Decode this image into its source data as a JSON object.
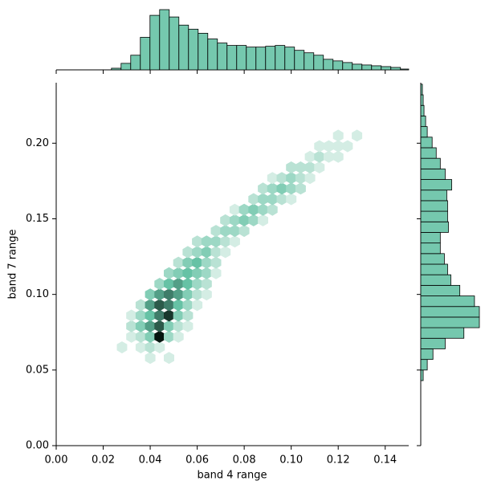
{
  "chart_data": [
    {
      "type": "hexbin",
      "xlabel": "band 4 range",
      "ylabel": "band 7 range",
      "xlim": [
        0,
        0.15
      ],
      "ylim": [
        0,
        0.24
      ],
      "xticks": [
        {
          "value": 0,
          "label": "0.00"
        },
        {
          "value": 0.02,
          "label": "0.02"
        },
        {
          "value": 0.04,
          "label": "0.04"
        },
        {
          "value": 0.06,
          "label": "0.06"
        },
        {
          "value": 0.08,
          "label": "0.08"
        },
        {
          "value": 0.1,
          "label": "0.10"
        },
        {
          "value": 0.12,
          "label": "0.12"
        },
        {
          "value": 0.14,
          "label": "0.14"
        }
      ],
      "yticks": [
        {
          "value": 0,
          "label": "0.00"
        },
        {
          "value": 0.05,
          "label": "0.05"
        },
        {
          "value": 0.1,
          "label": "0.10"
        },
        {
          "value": 0.15,
          "label": "0.15"
        },
        {
          "value": 0.2,
          "label": "0.20"
        }
      ],
      "color": "#66c2a5",
      "rows": [
        {
          "y": 0.058,
          "x": [
            0.04,
            0.048
          ],
          "values": [
            1,
            1
          ]
        },
        {
          "y": 0.065,
          "x": [
            0.028,
            0.036,
            0.04,
            0.044
          ],
          "values": [
            1,
            1,
            2,
            1
          ]
        },
        {
          "y": 0.072,
          "x": [
            0.032,
            0.036,
            0.04,
            0.044,
            0.048,
            0.052
          ],
          "values": [
            1,
            2,
            4,
            10,
            3,
            1
          ]
        },
        {
          "y": 0.079,
          "x": [
            0.032,
            0.036,
            0.04,
            0.044,
            0.048,
            0.052,
            0.056
          ],
          "values": [
            2,
            4,
            6,
            8,
            4,
            2,
            1
          ]
        },
        {
          "y": 0.086,
          "x": [
            0.032,
            0.036,
            0.04,
            0.044,
            0.048,
            0.052,
            0.056
          ],
          "values": [
            1,
            3,
            5,
            7,
            9,
            4,
            2
          ]
        },
        {
          "y": 0.093,
          "x": [
            0.036,
            0.04,
            0.044,
            0.048,
            0.052,
            0.056,
            0.06
          ],
          "values": [
            2,
            6,
            8,
            7,
            5,
            3,
            1
          ]
        },
        {
          "y": 0.1,
          "x": [
            0.04,
            0.044,
            0.048,
            0.052,
            0.056,
            0.06,
            0.064
          ],
          "values": [
            4,
            6,
            7,
            6,
            4,
            2,
            1
          ]
        },
        {
          "y": 0.107,
          "x": [
            0.044,
            0.048,
            0.052,
            0.056,
            0.06,
            0.064
          ],
          "values": [
            3,
            5,
            6,
            5,
            3,
            2
          ]
        },
        {
          "y": 0.114,
          "x": [
            0.048,
            0.052,
            0.056,
            0.06,
            0.064,
            0.068
          ],
          "values": [
            3,
            4,
            5,
            4,
            3,
            1
          ]
        },
        {
          "y": 0.121,
          "x": [
            0.052,
            0.056,
            0.06,
            0.064,
            0.068
          ],
          "values": [
            2,
            4,
            5,
            3,
            2
          ]
        },
        {
          "y": 0.128,
          "x": [
            0.056,
            0.06,
            0.064,
            0.068,
            0.072
          ],
          "values": [
            2,
            3,
            4,
            2,
            1
          ]
        },
        {
          "y": 0.135,
          "x": [
            0.06,
            0.064,
            0.068,
            0.072,
            0.076
          ],
          "values": [
            2,
            3,
            3,
            2,
            1
          ]
        },
        {
          "y": 0.142,
          "x": [
            0.068,
            0.072,
            0.076,
            0.08
          ],
          "values": [
            2,
            3,
            3,
            2
          ]
        },
        {
          "y": 0.149,
          "x": [
            0.072,
            0.076,
            0.08,
            0.084,
            0.088
          ],
          "values": [
            2,
            3,
            4,
            3,
            1
          ]
        },
        {
          "y": 0.156,
          "x": [
            0.076,
            0.08,
            0.084,
            0.088,
            0.092
          ],
          "values": [
            1,
            3,
            4,
            3,
            2
          ]
        },
        {
          "y": 0.163,
          "x": [
            0.084,
            0.088,
            0.092,
            0.096,
            0.1
          ],
          "values": [
            2,
            3,
            3,
            2,
            1
          ]
        },
        {
          "y": 0.17,
          "x": [
            0.088,
            0.092,
            0.096,
            0.1,
            0.104
          ],
          "values": [
            2,
            3,
            4,
            3,
            2
          ]
        },
        {
          "y": 0.177,
          "x": [
            0.092,
            0.096,
            0.1,
            0.104,
            0.108
          ],
          "values": [
            1,
            2,
            3,
            2,
            1
          ]
        },
        {
          "y": 0.184,
          "x": [
            0.1,
            0.104,
            0.108,
            0.112
          ],
          "values": [
            2,
            2,
            2,
            1
          ]
        },
        {
          "y": 0.191,
          "x": [
            0.108,
            0.112,
            0.116,
            0.12
          ],
          "values": [
            1,
            2,
            1,
            1
          ]
        },
        {
          "y": 0.198,
          "x": [
            0.112,
            0.116,
            0.12,
            0.124
          ],
          "values": [
            1,
            1,
            1,
            1
          ]
        },
        {
          "y": 0.205,
          "x": [
            0.12,
            0.128
          ],
          "values": [
            1,
            1
          ]
        }
      ]
    },
    {
      "type": "histogram",
      "orientation": "vertical",
      "color": "#66c2a5",
      "bins": [
        0.0235,
        0.0276,
        0.0317,
        0.0358,
        0.0399,
        0.044,
        0.0481,
        0.0522,
        0.0563,
        0.0604,
        0.0645,
        0.0686,
        0.0727,
        0.0768,
        0.0809,
        0.085,
        0.0891,
        0.0932,
        0.0973,
        0.1014,
        0.1055,
        0.1096,
        0.1137,
        0.1178,
        0.1219,
        0.126,
        0.1301,
        0.1342,
        0.1383,
        0.1424,
        0.1465,
        0.1506
      ],
      "values": [
        2,
        8,
        18,
        40,
        67,
        74,
        65,
        55,
        50,
        45,
        38,
        33,
        30,
        30,
        28,
        28,
        29,
        30,
        28,
        24,
        21,
        18,
        13,
        11,
        9,
        7,
        6,
        5,
        4,
        3,
        1
      ]
    },
    {
      "type": "histogram",
      "orientation": "horizontal",
      "color": "#66c2a5",
      "bins": [
        0.043,
        0.05,
        0.057,
        0.064,
        0.071,
        0.078,
        0.085,
        0.092,
        0.099,
        0.106,
        0.113,
        0.12,
        0.127,
        0.134,
        0.141,
        0.148,
        0.155,
        0.162,
        0.169,
        0.176,
        0.183,
        0.19,
        0.197,
        0.204,
        0.211,
        0.218,
        0.225,
        0.232,
        0.239
      ],
      "values": [
        3,
        8,
        15,
        30,
        53,
        72,
        72,
        66,
        48,
        37,
        33,
        29,
        24,
        24,
        34,
        33,
        33,
        32,
        38,
        30,
        24,
        19,
        14,
        8,
        6,
        4,
        3,
        2
      ]
    }
  ]
}
